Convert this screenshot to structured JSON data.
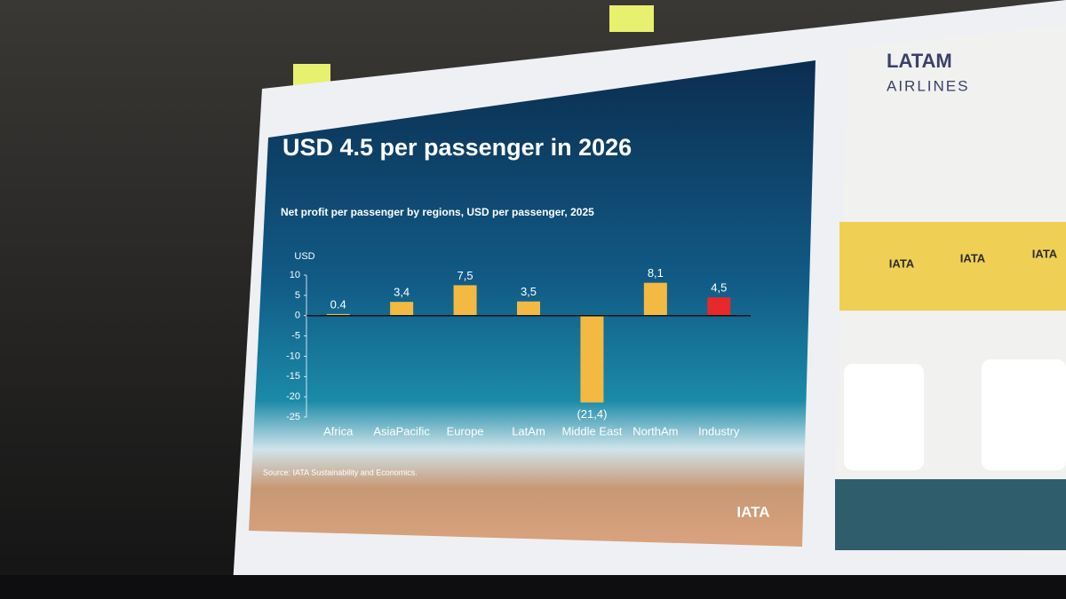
{
  "chart_data": {
    "type": "bar",
    "title": "USD 4.5 per passenger in 2026",
    "subtitle": "Net profit per passenger by regions, USD per passenger, 2025",
    "y_label": "USD",
    "categories": [
      "Africa",
      "AsiaPacific",
      "Europe",
      "LatAm",
      "Middle East",
      "NorthAm",
      "Industry"
    ],
    "values": [
      0.4,
      3.4,
      7.5,
      3.5,
      -21.4,
      8.1,
      4.5
    ],
    "value_labels": [
      "0.4",
      "3,4",
      "7,5",
      "3,5",
      "(21,4)",
      "8,1",
      "4,5"
    ],
    "colors": [
      "#f4b942",
      "#f4b942",
      "#f4b942",
      "#f4b942",
      "#f4b942",
      "#f4b942",
      "#e8282b"
    ],
    "ylim": [
      -25,
      10
    ],
    "yticks": [
      10,
      5,
      0,
      -5,
      -10,
      -15,
      -20,
      -25
    ],
    "source": "Source: IATA Sustainability and Economics.",
    "logo": "IATA"
  },
  "side_screen": {
    "brand": "LATAM",
    "brand_sub": "AIRLINES",
    "logos": [
      "IATA",
      "IATA",
      "IATA"
    ]
  }
}
